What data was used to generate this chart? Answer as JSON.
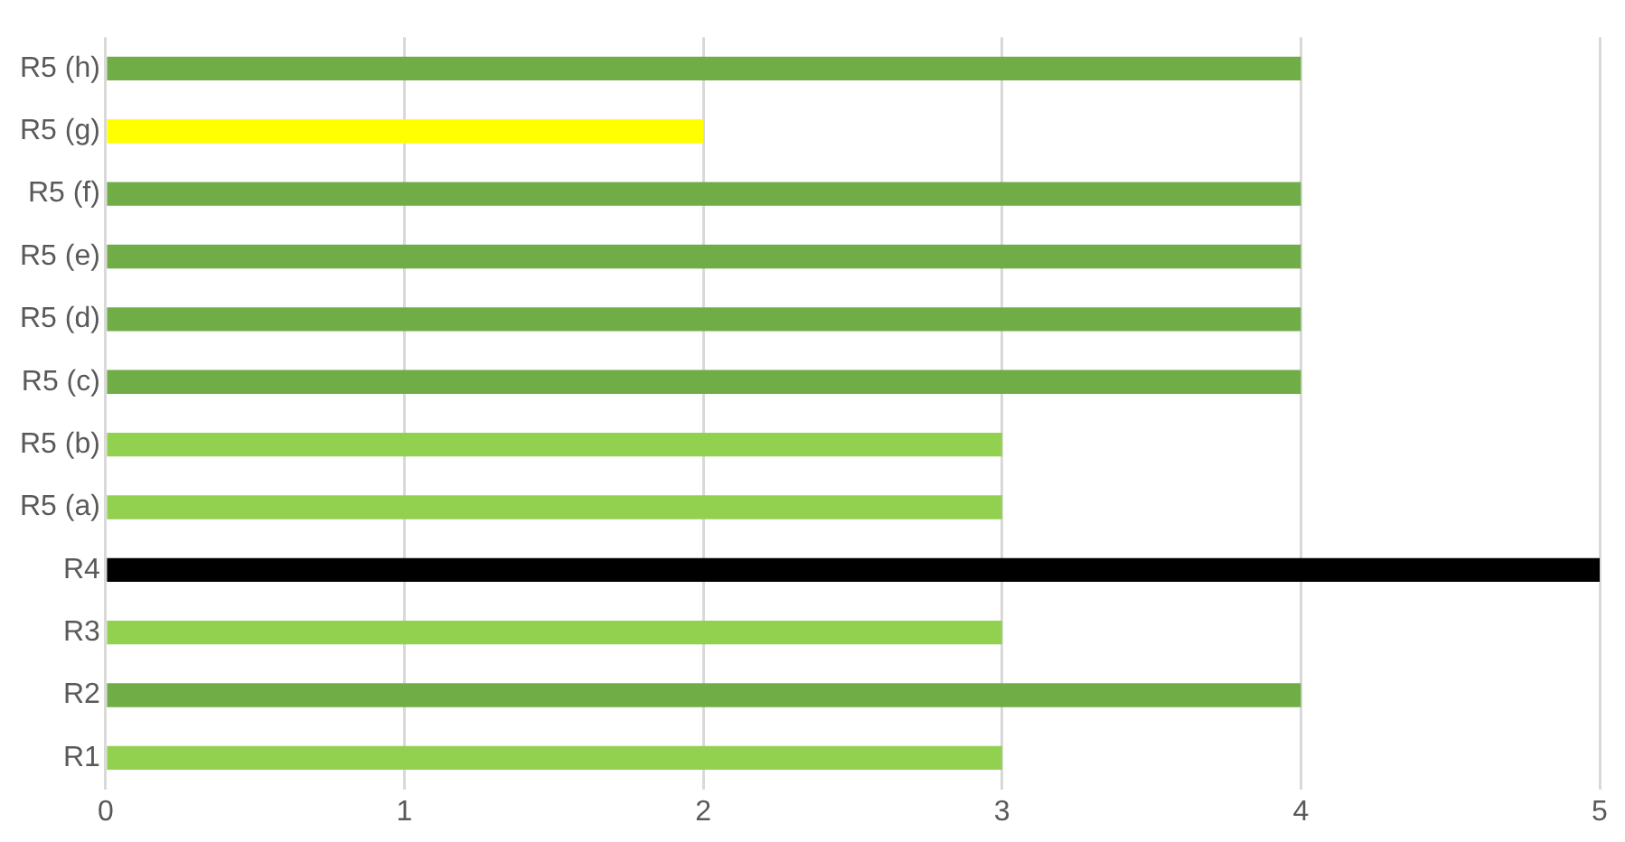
{
  "chart_data": {
    "type": "bar",
    "orientation": "horizontal",
    "categories": [
      "R5 (h)",
      "R5 (g)",
      "R5 (f)",
      "R5 (e)",
      "R5 (d)",
      "R5 (c)",
      "R5 (b)",
      "R5 (a)",
      "R4",
      "R3",
      "R2",
      "R1"
    ],
    "values": [
      4,
      2,
      4,
      4,
      4,
      4,
      3,
      3,
      5,
      3,
      4,
      3
    ],
    "colors": [
      "#70ad47",
      "#ffff00",
      "#70ad47",
      "#70ad47",
      "#70ad47",
      "#70ad47",
      "#92d050",
      "#92d050",
      "#000000",
      "#92d050",
      "#70ad47",
      "#92d050"
    ],
    "xlim": [
      0,
      5
    ],
    "xticks": [
      0,
      1,
      2,
      3,
      4,
      5
    ],
    "grid": "x"
  }
}
